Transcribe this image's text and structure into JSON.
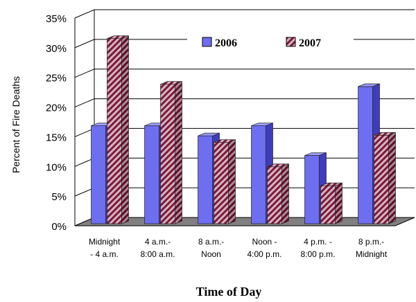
{
  "chart_data": {
    "type": "bar",
    "title": "",
    "xlabel": "Time of Day",
    "ylabel": "Percent of Fire Deaths",
    "ylim": [
      0,
      35
    ],
    "yticks": [
      "0%",
      "5%",
      "10%",
      "15%",
      "20%",
      "25%",
      "30%",
      "35%"
    ],
    "categories": [
      [
        "Midnight",
        "- 4 a.m."
      ],
      [
        "4 a.m.-",
        "8:00 a.m."
      ],
      [
        "8 a.m.-",
        "Noon"
      ],
      [
        "Noon -",
        "4:00 p.m."
      ],
      [
        "4 p.m. -",
        "8:00 p.m."
      ],
      [
        "8 p.m.-",
        "Midnight"
      ]
    ],
    "series": [
      {
        "name": "2006",
        "values": [
          16.5,
          16.5,
          14.8,
          16.5,
          11.5,
          23.1
        ]
      },
      {
        "name": "2007",
        "values": [
          31.2,
          23.5,
          13.7,
          9.6,
          6.4,
          14.9
        ]
      }
    ],
    "legend_position": "top-right",
    "grid": true,
    "style": "3d",
    "colors": {
      "s2006": "#6e6ef0",
      "s2006_dark": "#3d3dbd",
      "s2006_light": "#9a9af8",
      "s2007": "#c9a0ae",
      "s2007_stripe": "#7a1a3a",
      "floor": "#808080",
      "grid": "#000000"
    }
  }
}
